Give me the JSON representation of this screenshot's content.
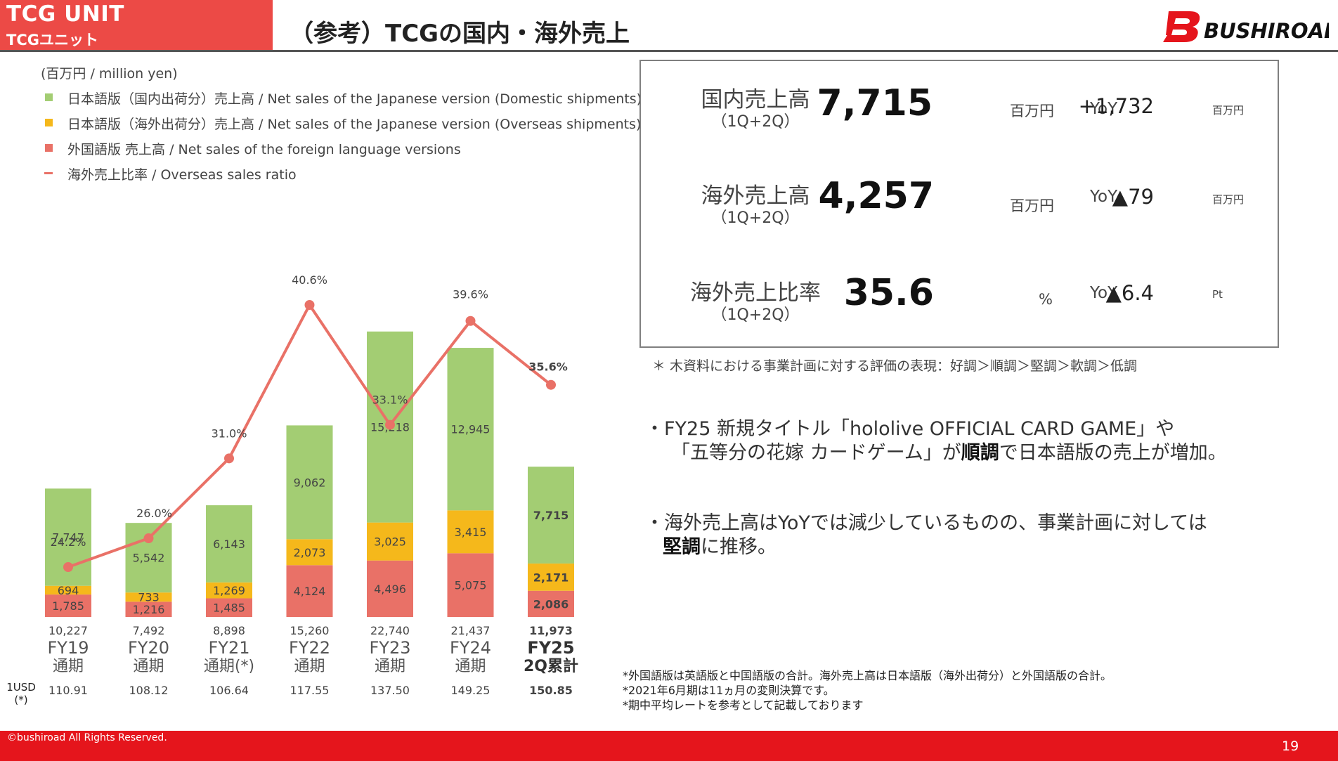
{
  "header": {
    "unit_en": "TCG UNIT",
    "unit_jp": "TCGユニット",
    "title": "（参考）TCGの国内・海外売上",
    "logo_text": "BUSHIROAD"
  },
  "legend": {
    "unit": "(百万円 / million yen)",
    "items": [
      {
        "label": "日本語版（国内出荷分）売上高 / Net sales of the Japanese version (Domestic shipments)",
        "color": "#a3cd73"
      },
      {
        "label": "日本語版（海外出荷分）売上高 / Net sales of the Japanese version (Overseas shipments)",
        "color": "#f5b81b"
      },
      {
        "label": "外国語版 売上高 / Net sales of the foreign language versions",
        "color": "#e97167"
      },
      {
        "label": "海外売上比率 / Overseas sales ratio",
        "color": "#e97167"
      }
    ]
  },
  "chart_data": {
    "type": "bar",
    "stacked": true,
    "categories": [
      "FY19\n通期",
      "FY20\n通期",
      "FY21\n通期(*)",
      "FY22\n通期",
      "FY23\n通期",
      "FY24\n通期",
      "FY25\n2Q累計"
    ],
    "series": [
      {
        "name": "外国語版 売上高 / Net sales of the foreign language versions",
        "color": "#e97167",
        "values": [
          1785,
          1216,
          1485,
          4124,
          4496,
          5075,
          2086
        ]
      },
      {
        "name": "日本語版（海外出荷分）売上高 / Net sales of the Japanese version (Overseas shipments)",
        "color": "#f5b81b",
        "values": [
          694,
          733,
          1269,
          2073,
          3025,
          3415,
          2171
        ]
      },
      {
        "name": "日本語版（国内出荷分）売上高 / Net sales of the Japanese version (Domestic shipments)",
        "color": "#a3cd73",
        "values": [
          7747,
          5542,
          6143,
          9062,
          15218,
          12945,
          7715
        ]
      }
    ],
    "labels": {
      "foreign": [
        "1,785",
        "1,216",
        "1,485",
        "4,124",
        "4,496",
        "5,075",
        "2,086"
      ],
      "overseas": [
        "694",
        "733",
        "1,269",
        "2,073",
        "3,025",
        "3,415",
        "2,171"
      ],
      "domestic": [
        "7,747",
        "5,542",
        "6,143",
        "9,062",
        "15,218",
        "12,945",
        "7,715"
      ]
    },
    "totals": [
      "10,227",
      "7,492",
      "8,898",
      "15,260",
      "22,740",
      "21,437",
      "11,973"
    ],
    "line": {
      "name": "海外売上比率 / Overseas sales ratio",
      "color": "#e97167",
      "values": [
        24.2,
        26.0,
        31.0,
        40.6,
        33.1,
        39.6,
        35.6
      ],
      "labels": [
        "24.2%",
        "26.0%",
        "31.0%",
        "40.6%",
        "33.1%",
        "39.6%",
        "35.6%"
      ]
    },
    "fx_label": "1USD\n(*)",
    "fx_rates": [
      "110.91",
      "108.12",
      "106.64",
      "117.55",
      "137.50",
      "149.25",
      "150.85"
    ],
    "highlight_last": true,
    "ylim": [
      0,
      23500
    ]
  },
  "kpi": {
    "rows": [
      {
        "label": "国内売上高",
        "sub": "（1Q+2Q）",
        "value": "7,715",
        "unit": "百万円",
        "yoy_label": "YoY",
        "yoy_value": "+1,732",
        "yoy_unit": "百万円"
      },
      {
        "label": "海外売上高",
        "sub": "（1Q+2Q）",
        "value": "4,257",
        "unit": "百万円",
        "yoy_label": "YoY",
        "yoy_value": "▲79",
        "yoy_unit": "百万円"
      },
      {
        "label": "海外売上比率",
        "sub": "（1Q+2Q）",
        "value": "35.6",
        "unit": "%",
        "yoy_label": "YoY",
        "yoy_value": "▲6.4",
        "yoy_unit": "Pt"
      }
    ]
  },
  "eval_note": "＊ 木資料における事業計画に対する評価の表現：好調＞順調＞堅調＞軟調＞低調",
  "bullets": {
    "b1_l1": "・FY25 新規タイトル「hololive OFFICIAL CARD GAME」や",
    "b1_l2_pre": "「五等分の花嫁 カードゲーム」が",
    "b1_l2_bold": "順調",
    "b1_l2_post": "で日本語版の売上が増加。",
    "b2_l1": "・海外売上高はYoYでは減少しているものの、事業計画に対しては",
    "b2_l2_bold": "堅調",
    "b2_l2_post": "に推移。"
  },
  "footnotes": [
    "*外国語版は英語版と中国語版の合計。海外売上高は日本語版（海外出荷分）と外国語版の合計。",
    "*2021年6月期は11ヵ月の変則決算です。",
    "*期中平均レートを参考として記載しております"
  ],
  "footer": {
    "copyright": "©bushiroad All Rights Reserved.",
    "page": "19"
  }
}
